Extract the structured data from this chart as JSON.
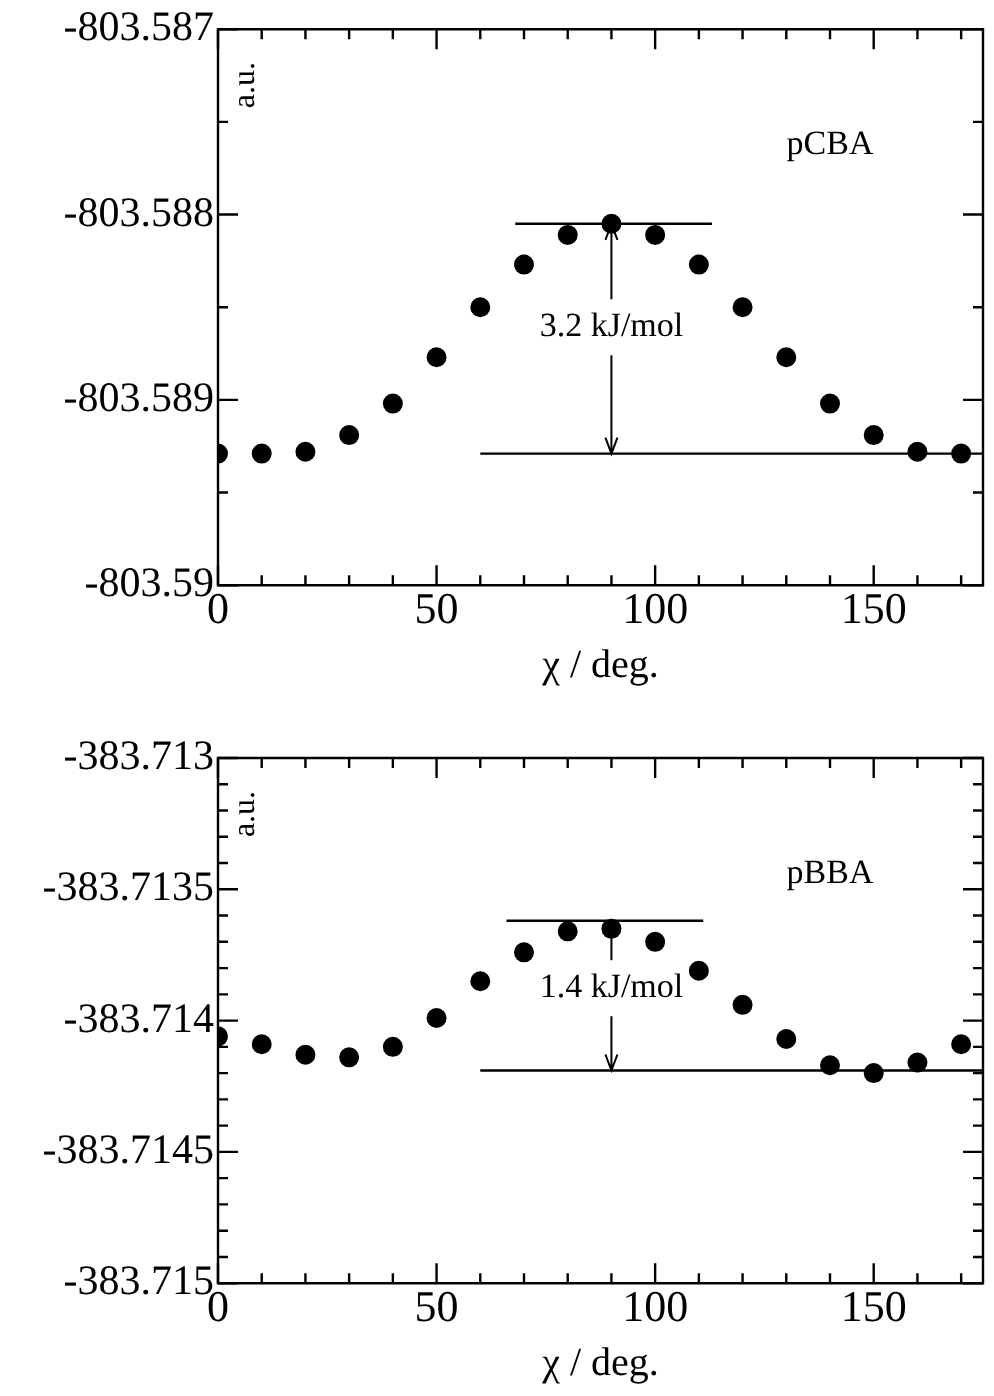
{
  "chart_data": [
    {
      "type": "scatter",
      "ylabel": "a.u.",
      "xlabel": "χ / deg.",
      "marker": "circle",
      "xlim": [
        0,
        175
      ],
      "xticks": [
        0,
        {
          "value": 10,
          "label": null
        },
        {
          "value": 20,
          "label": null
        },
        {
          "value": 30,
          "label": null
        },
        {
          "value": 40,
          "label": null
        },
        50,
        {
          "value": 60,
          "label": null
        },
        {
          "value": 70,
          "label": null
        },
        {
          "value": 80,
          "label": null
        },
        {
          "value": 90,
          "label": null
        },
        100,
        {
          "value": 110,
          "label": null
        },
        {
          "value": 120,
          "label": null
        },
        {
          "value": 130,
          "label": null
        },
        {
          "value": 140,
          "label": null
        },
        150,
        {
          "value": 160,
          "label": null
        },
        {
          "value": 170,
          "label": null
        }
      ],
      "ylim": [
        -803.59,
        -803.587
      ],
      "yticks": [
        -803.59,
        {
          "value": -803.5895,
          "label": null
        },
        -803.589,
        {
          "value": -803.5885,
          "label": null
        },
        -803.588,
        {
          "value": -803.5875,
          "label": null
        },
        -803.587
      ],
      "x": [
        0,
        10,
        20,
        30,
        40,
        50,
        60,
        70,
        80,
        90,
        100,
        110,
        120,
        130,
        140,
        150,
        160,
        170
      ],
      "series": [
        {
          "name": "pCBA",
          "color": "#000000",
          "values": [
            -803.58929,
            -803.58929,
            -803.58928,
            -803.58919,
            -803.58902,
            -803.58877,
            -803.5885,
            -803.58827,
            -803.58811,
            -803.58805,
            -803.58811,
            -803.58827,
            -803.5885,
            -803.58877,
            -803.58902,
            -803.58919,
            -803.58928,
            -803.58929
          ]
        },
        {
          "type": "line",
          "marker": "none",
          "color": "#000000",
          "x": [
            68,
            113
          ],
          "values": [
            -803.58805,
            -803.58805
          ]
        },
        {
          "type": "line",
          "marker": "none",
          "color": "#000000",
          "x": [
            60,
            175
          ],
          "values": [
            -803.58929,
            -803.58929
          ]
        }
      ],
      "annotations": [
        {
          "text": "3.2 kJ/mol",
          "x": 90,
          "y": -803.58805
        }
      ]
    },
    {
      "type": "scatter",
      "ylabel": "a.u.",
      "xlabel": "χ / deg.",
      "marker": "circle",
      "xlim": [
        0,
        175
      ],
      "xticks": [
        0,
        {
          "value": 10,
          "label": null
        },
        {
          "value": 20,
          "label": null
        },
        {
          "value": 30,
          "label": null
        },
        {
          "value": 40,
          "label": null
        },
        50,
        {
          "value": 60,
          "label": null
        },
        {
          "value": 70,
          "label": null
        },
        {
          "value": 80,
          "label": null
        },
        {
          "value": 90,
          "label": null
        },
        100,
        {
          "value": 110,
          "label": null
        },
        {
          "value": 120,
          "label": null
        },
        {
          "value": 130,
          "label": null
        },
        {
          "value": 140,
          "label": null
        },
        150,
        {
          "value": 160,
          "label": null
        },
        {
          "value": 170,
          "label": null
        }
      ],
      "ylim": [
        -383.715,
        -383.713
      ],
      "yticks": [
        -383.715,
        {
          "value": -383.7149,
          "label": null
        },
        {
          "value": -383.7148,
          "label": null
        },
        {
          "value": -383.7147,
          "label": null
        },
        {
          "value": -383.7146,
          "label": null
        },
        -383.7145,
        {
          "value": -383.7144,
          "label": null
        },
        {
          "value": -383.7143,
          "label": null
        },
        {
          "value": -383.7142,
          "label": null
        },
        {
          "value": -383.7141,
          "label": null
        },
        -383.714,
        {
          "value": -383.7139,
          "label": null
        },
        {
          "value": -383.7138,
          "label": null
        },
        {
          "value": -383.7137,
          "label": null
        },
        {
          "value": -383.7136,
          "label": null
        },
        -383.7135,
        {
          "value": -383.7134,
          "label": null
        },
        {
          "value": -383.7133,
          "label": null
        },
        {
          "value": -383.7132,
          "label": null
        },
        {
          "value": -383.7131,
          "label": null
        },
        -383.713
      ],
      "x": [
        0,
        10,
        20,
        30,
        40,
        50,
        60,
        70,
        80,
        90,
        100,
        110,
        120,
        130,
        140,
        150,
        160,
        170
      ],
      "series": [
        {
          "name": "pBBA",
          "color": "#000000",
          "values": [
            -383.71406,
            -383.71409,
            -383.71413,
            -383.71414,
            -383.7141,
            -383.71399,
            -383.71385,
            -383.71374,
            -383.71366,
            -383.71365,
            -383.7137,
            -383.71381,
            -383.71394,
            -383.71407,
            -383.71417,
            -383.7142,
            -383.71416,
            -383.71409
          ]
        },
        {
          "type": "line",
          "marker": "none",
          "color": "#000000",
          "x": [
            66,
            111
          ],
          "values": [
            -383.71362,
            -383.71362
          ]
        },
        {
          "type": "line",
          "marker": "none",
          "color": "#000000",
          "x": [
            60,
            175
          ],
          "values": [
            -383.71419,
            -383.71419
          ]
        }
      ],
      "annotations": [
        {
          "text": "1.4 kJ/mol",
          "x": 90,
          "y": -383.71362
        }
      ]
    }
  ]
}
